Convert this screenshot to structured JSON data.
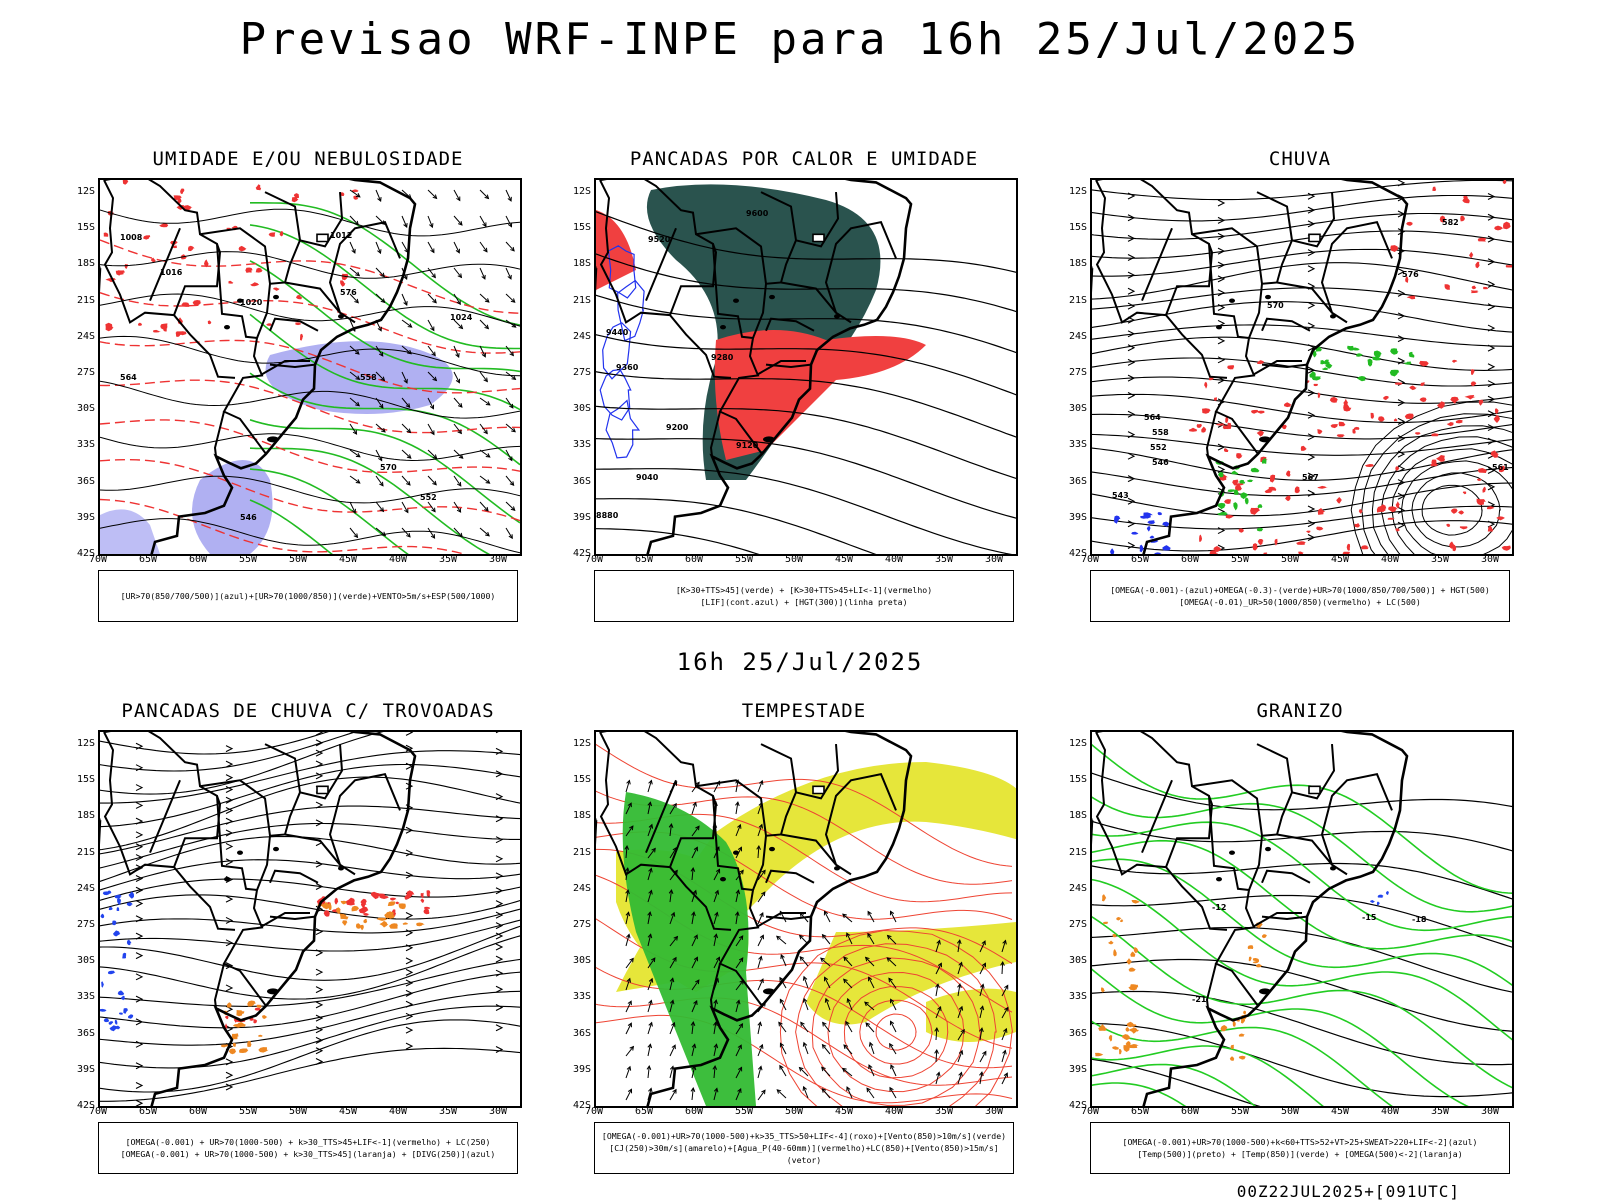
{
  "title": "Previsao WRF-INPE  para 16h 25/Jul/2025",
  "subtitle": "16h 25/Jul/2025",
  "footer": "00Z22JUL2025+[091UTC]",
  "axes": {
    "lat_labels": [
      "12S",
      "15S",
      "18S",
      "21S",
      "24S",
      "27S",
      "30S",
      "33S",
      "36S",
      "39S",
      "42S"
    ],
    "lon_labels": [
      "70W",
      "65W",
      "60W",
      "55W",
      "50W",
      "45W",
      "40W",
      "35W",
      "30W"
    ]
  },
  "panels": [
    {
      "id": "umidade",
      "title": "UMIDADE E/OU NEBULOSIDADE",
      "legend": [
        "[UR>70(850/700/500)](azul)+[UR>70(1000/850)](verde)+VENTO>5m/s+ESP(500/1000)"
      ],
      "labels": [
        "1008",
        "1012",
        "1016",
        "1020",
        "1024",
        "570",
        "576",
        "564",
        "558",
        "552",
        "546"
      ],
      "colors": {
        "blue": "#6f6fe8",
        "green": "#22bb22",
        "red": "#ee3333"
      }
    },
    {
      "id": "pancadas",
      "title": "PANCADAS POR CALOR E UMIDADE",
      "legend": [
        "[K>30+TTS>45](verde) + [K>30+TTS>45+LI<-1](vermelho)",
        "[LIF](cont.azul) + [HGT(300)](linha preta)"
      ],
      "labels": [
        "9600",
        "9520",
        "9440",
        "9360",
        "9280",
        "9200",
        "9120",
        "9040",
        "8880"
      ],
      "colors": {
        "green": "#1f4a44",
        "red": "#f04040",
        "blue": "#2233ee"
      }
    },
    {
      "id": "chuva",
      "title": "CHUVA",
      "legend": [
        "[OMEGA(-0.001)-(azul)+OMEGA(-0.3)-(verde)+UR>70(1000/850/700/500)] + HGT(500)",
        "[OMEGA(-0.01)_UR>50(1000/850)(vermelho) + LC(500)"
      ],
      "labels": [
        "582",
        "576",
        "570",
        "564",
        "558",
        "552",
        "546",
        "543",
        "567",
        "561"
      ],
      "colors": {
        "red": "#ee3333",
        "green": "#22bb22",
        "blue": "#2233ee"
      }
    },
    {
      "id": "trovoadas",
      "title": "PANCADAS DE CHUVA C/ TROVOADAS",
      "legend": [
        "[OMEGA(-0.001) + UR>70(1000-500) + k>30_TTS>45+LIF<-1](vermelho) + LC(250)",
        "[OMEGA(-0.001) + UR>70(1000-500) + k>30_TTS>45](laranja) + [DIVG(250)](azul)"
      ],
      "labels": [],
      "colors": {
        "red": "#ee3333",
        "orange": "#ee8822",
        "blue": "#2244ee"
      }
    },
    {
      "id": "tempestade",
      "title": "TEMPESTADE",
      "legend": [
        "[OMEGA(-0.001)+UR>70(1000-500)+k>35_TTS>50+LIF<-4](roxo)+[Vento(850)>10m/s](verde)",
        "[CJ(250)>30m/s](amarelo)+[Agua_P(40-60mm)](vermelho)+LC(850)+[Vento(850)>15m/s](vetor)"
      ],
      "labels": [],
      "colors": {
        "yellow": "#e6e63a",
        "green": "#33bb33",
        "red": "#ee4433"
      }
    },
    {
      "id": "granizo",
      "title": "GRANIZO",
      "legend": [
        "[OMEGA(-0.001)+UR>70(1000-500)+k<60+TTS>52+VT>25+SWEAT>220+LIF<-2](azul)",
        "[Temp(500)](preto) + [Temp(850)](verde) + [OMEGA(500)<-2](laranja)"
      ],
      "labels": [
        "-12",
        "-15",
        "-18",
        "-21"
      ],
      "colors": {
        "green": "#22cc22",
        "orange": "#ee8822",
        "blue": "#2244ee"
      }
    }
  ]
}
